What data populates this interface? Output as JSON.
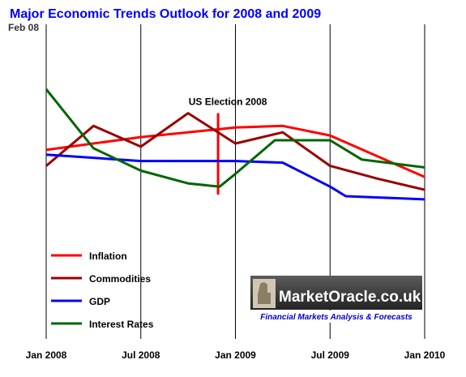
{
  "chart_data": {
    "type": "line",
    "title": "Major Economic Trends Outlook for 2008 and 2009",
    "subtitle": "Feb 08",
    "x_tick_labels": [
      "Jan 2008",
      "Jul 2008",
      "Jan 2009",
      "Jul 2009",
      "Jan 2010"
    ],
    "x_tick_months": [
      0,
      6,
      12,
      18,
      24
    ],
    "xlim": [
      0,
      24
    ],
    "ylim": [
      0,
      100
    ],
    "grid": "vertical",
    "legend_position": "bottom-left",
    "series": [
      {
        "name": "Inflation",
        "color": "#ff0000",
        "x": [
          0,
          6,
          12,
          15,
          18,
          24
        ],
        "y": [
          62,
          70,
          76,
          77,
          71,
          45
        ]
      },
      {
        "name": "Commodities",
        "color": "#990000",
        "x": [
          0,
          3,
          6,
          9,
          12,
          15,
          18,
          21,
          24
        ],
        "y": [
          52,
          77,
          64,
          85,
          66,
          73,
          52,
          44,
          37
        ]
      },
      {
        "name": "GDP",
        "color": "#0000ff",
        "x": [
          0,
          6,
          12,
          15,
          18,
          19,
          24
        ],
        "y": [
          59,
          55,
          55,
          54,
          39,
          33,
          31
        ]
      },
      {
        "name": "Interest Rates",
        "color": "#006600",
        "x": [
          0,
          3,
          6,
          9,
          11,
          12,
          14.5,
          18,
          20,
          24
        ],
        "y": [
          100,
          63,
          49,
          41,
          39,
          47,
          68,
          68,
          56,
          51
        ]
      }
    ],
    "annotations": [
      {
        "text": "US Election 2008",
        "x": 10.9,
        "line_from_y": 85,
        "line_to_y": 34,
        "color": "#ff0000"
      }
    ]
  },
  "watermark": {
    "text": "MarketOracle.co.uk",
    "tagline": "Financial Markets Analysis & Forecasts"
  }
}
